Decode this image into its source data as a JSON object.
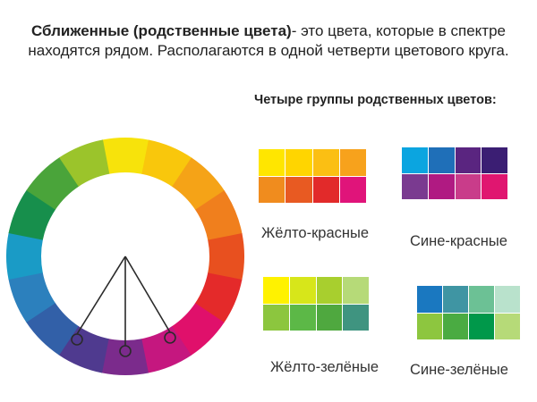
{
  "header": {
    "title_bold": "Сближенные (родственные цвета)",
    "title_rest": "- это цвета, которые в спектре находятся рядом. Располагаются в одной четверти цветового круга.",
    "groups_heading": "Четыре группы родственных цветов:"
  },
  "wheel": {
    "segments": [
      "#f7e30b",
      "#f9c70c",
      "#f5a317",
      "#f07f1d",
      "#e8501f",
      "#e42a2a",
      "#e0106b",
      "#c5177f",
      "#7b2b8c",
      "#4f3a8f",
      "#3260a8",
      "#2c80bd",
      "#1a9bc6",
      "#178f4c",
      "#4aa43a",
      "#9bc42b"
    ],
    "marker_color": "#2a2a2a"
  },
  "groups": [
    {
      "label": "Жёлто-красные",
      "rows": [
        [
          "#ffe600",
          "#ffd500",
          "#fbbf13",
          "#f7a21c"
        ],
        [
          "#f08c1e",
          "#e85a22",
          "#e22a2a",
          "#e0147a"
        ]
      ]
    },
    {
      "label": "Сине-красные",
      "rows": [
        [
          "#0ba5e0",
          "#1f6fb8",
          "#5a2580",
          "#3b1e73"
        ],
        [
          "#7a3a90",
          "#b01a82",
          "#c93c8a",
          "#e01670"
        ]
      ]
    },
    {
      "label": "Жёлто-зелёные",
      "rows": [
        [
          "#fff200",
          "#d7e61a",
          "#a8cf2e",
          "#b6da78"
        ],
        [
          "#8cc63e",
          "#5cb847",
          "#4fa83f",
          "#3f9480"
        ]
      ]
    },
    {
      "label": "Сине-зелёные",
      "rows": [
        [
          "#1a78c0",
          "#3f95a3",
          "#6cc195",
          "#b9e2cc"
        ],
        [
          "#8dc63f",
          "#4aab42",
          "#00984a",
          "#b6da78"
        ]
      ]
    }
  ]
}
